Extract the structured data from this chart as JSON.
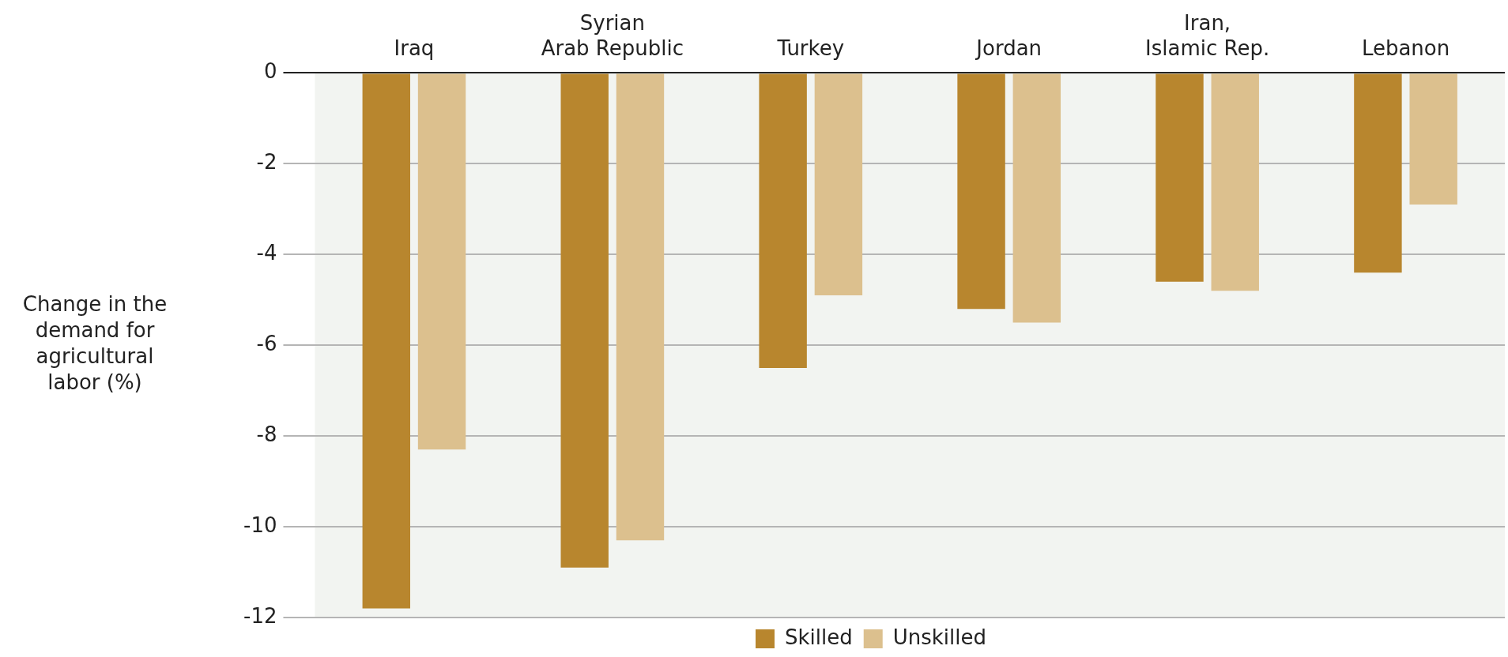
{
  "chart_data": {
    "type": "bar",
    "ylabel": "Change in the demand for agricultural labor (%)",
    "categories": [
      "Iraq",
      "Syrian Arab Republic",
      "Turkey",
      "Jordan",
      "Iran, Islamic Rep.",
      "Lebanon"
    ],
    "series": [
      {
        "name": "Skilled",
        "color": "#b8862e",
        "values": [
          -11.8,
          -10.9,
          -6.5,
          -5.2,
          -4.6,
          -4.4
        ]
      },
      {
        "name": "Unskilled",
        "color": "#dcc08e",
        "values": [
          -8.3,
          -10.3,
          -4.9,
          -5.5,
          -4.8,
          -2.9
        ]
      }
    ],
    "ylim": [
      -12,
      0
    ],
    "yticks": [
      -12,
      -10,
      -8,
      -6,
      -4,
      -2,
      0
    ],
    "grid": "y",
    "legend": "bottom"
  }
}
